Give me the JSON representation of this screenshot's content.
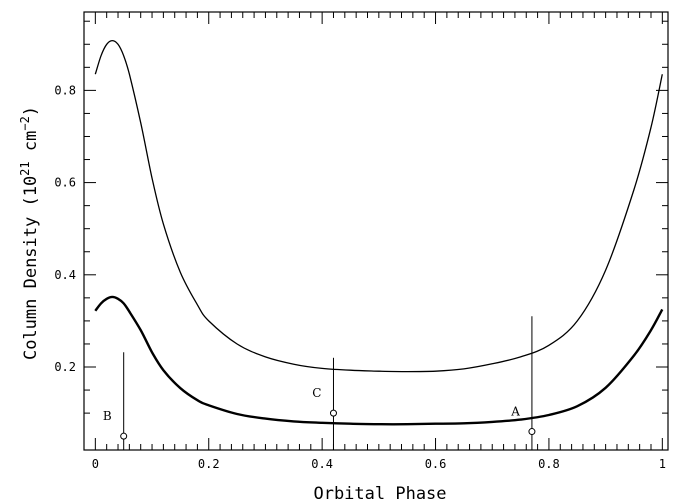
{
  "chart_data": {
    "type": "line",
    "title": "",
    "xlabel": "Orbital Phase",
    "ylabel": {
      "prefix": "Column Density (10",
      "exp1": "21",
      "mid": " cm",
      "exp2": "−2",
      "suffix": ")"
    },
    "xlim": [
      -0.02,
      1.01
    ],
    "ylim": [
      0.02,
      0.97
    ],
    "xticks": [
      0,
      0.2,
      0.4,
      0.6,
      0.8,
      1
    ],
    "xtick_labels": [
      "0",
      "0.2",
      "0.4",
      "0.6",
      "0.8",
      "1"
    ],
    "yticks": [
      0.2,
      0.4,
      0.6,
      0.8
    ],
    "ytick_labels": [
      "0.2",
      "0.4",
      "0.6",
      "0.8"
    ],
    "grid": false,
    "series": [
      {
        "style": "thin",
        "x": [
          0,
          0.01,
          0.02,
          0.03,
          0.04,
          0.05,
          0.06,
          0.08,
          0.1,
          0.12,
          0.15,
          0.18,
          0.2,
          0.25,
          0.3,
          0.35,
          0.4,
          0.45,
          0.5,
          0.55,
          0.6,
          0.65,
          0.7,
          0.75,
          0.8,
          0.85,
          0.9,
          0.95,
          0.98,
          1
        ],
        "y": [
          0.835,
          0.875,
          0.9,
          0.908,
          0.9,
          0.875,
          0.835,
          0.73,
          0.61,
          0.51,
          0.405,
          0.335,
          0.3,
          0.25,
          0.222,
          0.206,
          0.197,
          0.193,
          0.191,
          0.19,
          0.191,
          0.196,
          0.207,
          0.222,
          0.247,
          0.3,
          0.41,
          0.585,
          0.72,
          0.835
        ]
      },
      {
        "style": "thick",
        "x": [
          0,
          0.01,
          0.02,
          0.03,
          0.04,
          0.05,
          0.06,
          0.08,
          0.1,
          0.12,
          0.15,
          0.18,
          0.2,
          0.25,
          0.3,
          0.35,
          0.4,
          0.45,
          0.5,
          0.55,
          0.6,
          0.65,
          0.7,
          0.75,
          0.8,
          0.85,
          0.9,
          0.95,
          0.98,
          1
        ],
        "y": [
          0.322,
          0.338,
          0.348,
          0.352,
          0.348,
          0.338,
          0.32,
          0.28,
          0.232,
          0.193,
          0.154,
          0.128,
          0.117,
          0.098,
          0.088,
          0.082,
          0.079,
          0.077,
          0.076,
          0.076,
          0.077,
          0.078,
          0.081,
          0.086,
          0.096,
          0.115,
          0.155,
          0.225,
          0.28,
          0.325
        ]
      }
    ],
    "points": [
      {
        "label": "B",
        "x": 0.05,
        "y": 0.05,
        "y_top": 0.232
      },
      {
        "label": "C",
        "x": 0.42,
        "y": 0.1,
        "y_top": 0.22
      },
      {
        "label": "A",
        "x": 0.77,
        "y": 0.06,
        "y_top": 0.31
      }
    ]
  }
}
